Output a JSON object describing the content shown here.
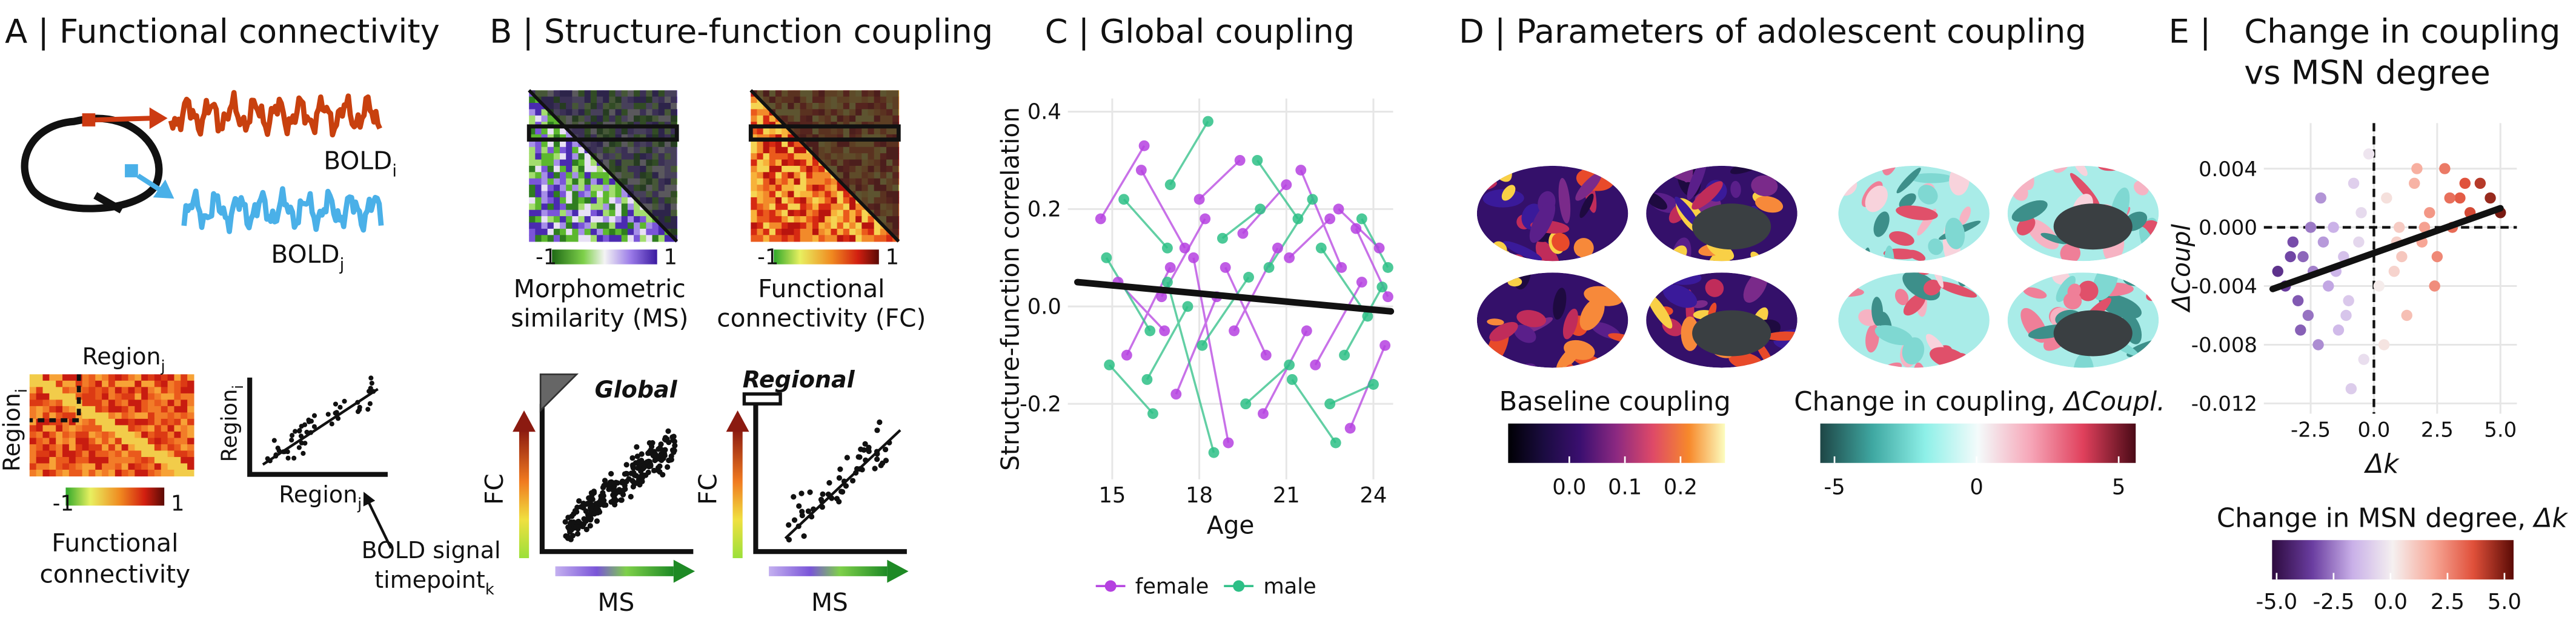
{
  "panels": {
    "A": {
      "title": "A | Functional connectivity",
      "bold_i": {
        "text": "BOLD",
        "sub": "i"
      },
      "bold_j": {
        "text": "BOLD",
        "sub": "j"
      },
      "region_j": {
        "text": "Region",
        "sub": "j"
      },
      "region_i": {
        "text": "Region",
        "sub": "i"
      },
      "colorbar_ticks": [
        -1,
        1
      ],
      "matrix_caption": [
        "Functional",
        "connectivity"
      ],
      "scatter_y": {
        "text": "Region",
        "sub": "i"
      },
      "scatter_x": {
        "text": "Region",
        "sub": "j"
      },
      "annotation": {
        "line1": "BOLD signal",
        "line2": {
          "text": "timepoint",
          "sub": "k"
        }
      }
    },
    "B": {
      "title": "B | Structure-function coupling",
      "ms_ticks": [
        -1,
        1
      ],
      "fc_ticks": [
        -1,
        1
      ],
      "ms_caption": [
        "Morphometric",
        "similarity (MS)"
      ],
      "fc_caption": [
        "Functional",
        "connectivity (FC)"
      ],
      "global": "Global",
      "regional": "Regional",
      "fc_axis": "FC",
      "ms_axis": "MS"
    },
    "D": {
      "title": "D | Parameters of adolescent coupling",
      "baseline": {
        "label": "Baseline coupling",
        "lim": [
          -0.11,
          0.28
        ],
        "ticks": [
          {
            "value": 0,
            "label": "0.0"
          },
          0.1,
          0.2
        ],
        "colors": [
          "#000004",
          "#1b0c41",
          "#3b0f70",
          "#8c2981",
          "#de4968",
          "#f7892b",
          "#fcfdbf"
        ]
      },
      "change": {
        "label": "Change in coupling, ",
        "label_sym": "ΔCoupl.",
        "lim": [
          -5.5,
          5.6
        ],
        "ticks": [
          -5,
          0,
          5
        ],
        "colors": [
          "#1e4646",
          "#3fa8a2",
          "#8ef0e8",
          "#f4fbfb",
          "#f6a6b8",
          "#e0405c",
          "#4a0a16"
        ]
      }
    }
  },
  "chart_data": [
    {
      "type": "line",
      "title": "C | Global coupling",
      "y_label": "Structure-function correlation",
      "x_label": "Age",
      "xlim": [
        13.47,
        24.68
      ],
      "ylim": [
        -0.355,
        0.427
      ],
      "xticks": [
        15,
        18,
        21,
        24
      ],
      "yticks": [
        -0.2,
        {
          "value": 0,
          "label": "0.0"
        },
        0.2,
        0.4
      ],
      "grid": true,
      "legend": "bottom",
      "series": [
        {
          "name": "female",
          "color": "#b541e0",
          "x": [
            14.6,
            16.1,
            null,
            15.2,
            16.8,
            null,
            16.0,
            17.5,
            null,
            17.2,
            18.6,
            null,
            18.0,
            19.4,
            null,
            18.9,
            20.3,
            null,
            19.5,
            21.0,
            null,
            20.2,
            21.7,
            null,
            21.1,
            22.5,
            null,
            22.0,
            23.6,
            null,
            22.8,
            24.2,
            null,
            23.2,
            24.4,
            null,
            23.4,
            24.5,
            null,
            15.5,
            17.0,
            null,
            16.7,
            18.2,
            null,
            19.2,
            20.7,
            null,
            21.5,
            22.9,
            null,
            17.8,
            19.0
          ],
          "values": [
            0.18,
            0.33,
            null,
            0.05,
            -0.05,
            null,
            0.28,
            0.12,
            null,
            -0.18,
            0.02,
            null,
            0.22,
            0.3,
            null,
            0.08,
            -0.1,
            null,
            0.15,
            0.25,
            null,
            -0.22,
            -0.05,
            null,
            0.1,
            0.18,
            null,
            -0.12,
            0.05,
            null,
            0.2,
            0.12,
            null,
            -0.25,
            -0.08,
            null,
            0.16,
            0.02,
            null,
            -0.1,
            0.08,
            null,
            0.02,
            0.18,
            null,
            -0.05,
            0.12,
            null,
            0.28,
            0.08,
            null,
            0.1,
            -0.28
          ]
        },
        {
          "name": "male",
          "color": "#2dbf86",
          "x": [
            14.8,
            16.3,
            null,
            15.4,
            16.9,
            null,
            16.2,
            17.6,
            null,
            17.0,
            18.3,
            null,
            18.1,
            19.7,
            null,
            18.8,
            20.1,
            null,
            19.6,
            21.1,
            null,
            20.4,
            21.9,
            null,
            21.2,
            22.7,
            null,
            22.2,
            23.8,
            null,
            23.0,
            24.3,
            null,
            23.6,
            24.5,
            null,
            14.9,
            16.4,
            null,
            16.9,
            18.5,
            null,
            20.0,
            21.4,
            null,
            22.5,
            24.0
          ],
          "values": [
            0.1,
            -0.05,
            null,
            0.22,
            0.12,
            null,
            -0.15,
            0,
            null,
            0.25,
            0.38,
            null,
            -0.08,
            0.06,
            null,
            0.14,
            0.2,
            null,
            -0.2,
            -0.12,
            null,
            0.08,
            0.22,
            null,
            -0.15,
            -0.28,
            null,
            0.12,
            -0.02,
            null,
            -0.1,
            0.04,
            null,
            0.18,
            0.08,
            null,
            -0.12,
            -0.22,
            null,
            0.05,
            -0.3,
            null,
            0.3,
            0.18,
            null,
            -0.2,
            -0.16
          ]
        }
      ],
      "fit": {
        "x": [
          13.8,
          24.6
        ],
        "values": [
          0.05,
          -0.01
        ],
        "color": "#111111"
      }
    },
    {
      "type": "scatter",
      "title_label": "E |",
      "title": [
        "Change in coupling",
        "vs MSN degree"
      ],
      "y_label": "ΔCoupl",
      "x_label": "Δk",
      "xlim": [
        -4.35,
        5.65
      ],
      "ylim": [
        -0.0127,
        0.0071
      ],
      "xticks": [
        -2.5,
        {
          "value": 0,
          "label": "0.0"
        },
        2.5,
        {
          "value": 5,
          "label": "5.0"
        }
      ],
      "yticks": [
        0.004,
        {
          "value": 0,
          "label": "0.000"
        },
        -0.004,
        -0.008,
        -0.012
      ],
      "grid": true,
      "reflines": {
        "x": 0,
        "y": 0
      },
      "x": [
        -3.8,
        -3.5,
        -3.2,
        -3.0,
        -2.8,
        -2.6,
        -2.4,
        -2.2,
        -2.0,
        -1.8,
        -1.6,
        -1.4,
        -1.2,
        -1.0,
        -0.8,
        -0.6,
        -0.4,
        -0.2,
        -3.3,
        -2.9,
        -2.1,
        -1.5,
        -0.9,
        -0.5,
        -1.1,
        -2.5,
        0.2,
        0.5,
        0.8,
        1.0,
        1.3,
        1.6,
        1.9,
        2.2,
        2.5,
        2.8,
        3.1,
        3.4,
        3.8,
        4.2,
        4.6,
        5.0,
        0.4,
        1.1,
        1.7,
        2.4,
        3.0,
        3.6,
        0.9,
        2.0
      ],
      "values": [
        -0.003,
        -0.004,
        -0.001,
        -0.005,
        -0.002,
        -0.006,
        -0.003,
        -0.008,
        -0.001,
        -0.004,
        0,
        -0.007,
        -0.002,
        -0.005,
        0.003,
        -0.001,
        -0.009,
        0.005,
        -0.002,
        -0.007,
        0.002,
        -0.003,
        -0.011,
        0.001,
        -0.006,
        0,
        -0.004,
        0.002,
        -0.003,
        0,
        -0.006,
        0.003,
        -0.001,
        0.001,
        -0.002,
        0.004,
        0,
        0.002,
        0.001,
        0.003,
        0.002,
        0.001,
        -0.008,
        -0.002,
        0.004,
        -0.004,
        0.002,
        0.003,
        -0.001,
        0
      ],
      "fit": {
        "x": [
          -4,
          5
        ],
        "values": [
          -0.0042,
          0.0013
        ],
        "color": "#111111"
      },
      "colorbar": {
        "label": "Change in MSN degree, ",
        "label_sym": "Δk",
        "lim": [
          -5.2,
          5.4
        ],
        "ticks": [
          {
            "value": -5,
            "label": "-5.0"
          },
          -2.5,
          {
            "value": 0,
            "label": "0.0"
          },
          2.5,
          {
            "value": 5,
            "label": "5.0"
          }
        ],
        "colors": [
          "#2d0a3e",
          "#6a3da0",
          "#c9b0e8",
          "#f5f0f0",
          "#f7a898",
          "#e0503a",
          "#5a0a05"
        ]
      }
    }
  ]
}
